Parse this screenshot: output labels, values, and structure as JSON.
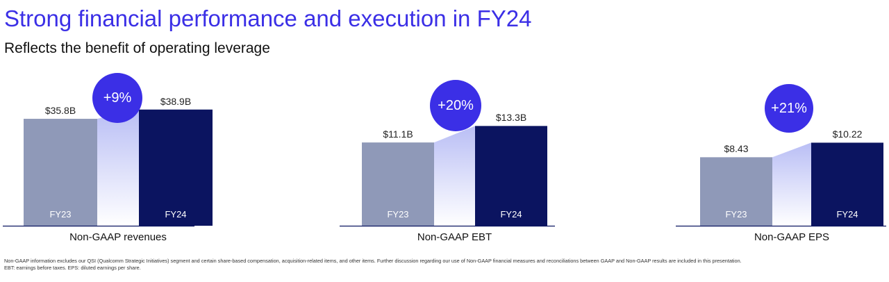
{
  "header": {
    "title": "Strong financial performance and execution in FY24",
    "subtitle": "Reflects the benefit of operating leverage"
  },
  "colors": {
    "accent": "#3b2fe6",
    "fy23_bar": "#8f99b8",
    "fy24_bar": "#0b1460",
    "gradient": "#b9bef5"
  },
  "chart_data": [
    {
      "type": "bar",
      "metric": "Non-GAAP revenues",
      "categories": [
        "FY23",
        "FY24"
      ],
      "values": [
        35.8,
        38.9
      ],
      "value_labels": [
        "$35.8B",
        "$38.9B"
      ],
      "growth": "+9%"
    },
    {
      "type": "bar",
      "metric": "Non-GAAP EBT",
      "categories": [
        "FY23",
        "FY24"
      ],
      "values": [
        11.1,
        13.3
      ],
      "value_labels": [
        "$11.1B",
        "$13.3B"
      ],
      "growth": "+20%"
    },
    {
      "type": "bar",
      "metric": "Non-GAAP EPS",
      "categories": [
        "FY23",
        "FY24"
      ],
      "values": [
        8.43,
        10.22
      ],
      "value_labels": [
        "$8.43",
        "$10.22"
      ],
      "growth": "+21%"
    }
  ],
  "footnote": {
    "line1": "Non-GAAP information excludes our QSI (Qualcomm Strategic Initiatives) segment and certain share-based compensation, acquisition-related items, and other items. Further discussion regarding our use of Non-GAAP financial measures and reconciliations between GAAP and Non-GAAP results are included in this presentation.",
    "line2": "EBT: earnings before taxes. EPS: diluted earnings per share."
  }
}
